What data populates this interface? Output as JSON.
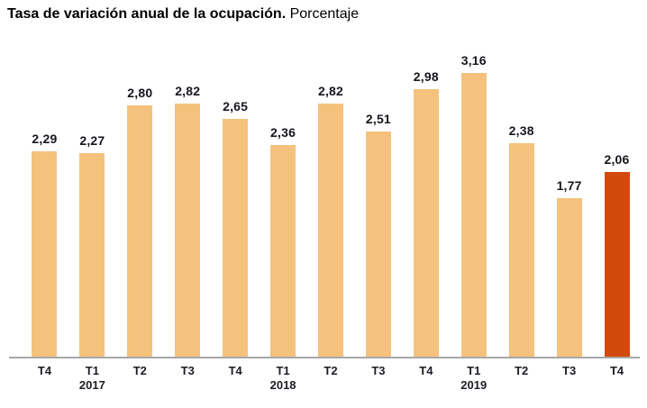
{
  "title": {
    "bold": "Tasa de variación anual de la ocupación.",
    "regular": "Porcentaje"
  },
  "colors": {
    "bar": "#f5c27d",
    "highlight": "#d2490e",
    "axis": "#a8a8a8",
    "label": "#16161d"
  },
  "chart_data": {
    "type": "bar",
    "title": "Tasa de variación anual de la ocupación. Porcentaje",
    "xlabel": "",
    "ylabel": "",
    "ylim": [
      0,
      3.5
    ],
    "grid": false,
    "y_axis_visible": false,
    "legend": "none",
    "categories": [
      "T4",
      "T1",
      "T2",
      "T3",
      "T4",
      "T1",
      "T2",
      "T3",
      "T4",
      "T1",
      "T2",
      "T3",
      "T4"
    ],
    "year_labels": [
      "",
      "2017",
      "",
      "",
      "",
      "2018",
      "",
      "",
      "",
      "2019",
      "",
      "",
      ""
    ],
    "values": [
      2.29,
      2.27,
      2.8,
      2.82,
      2.65,
      2.36,
      2.82,
      2.51,
      2.98,
      3.16,
      2.38,
      1.77,
      2.06
    ],
    "value_labels": [
      "2,29",
      "2,27",
      "2,80",
      "2,82",
      "2,65",
      "2,36",
      "2,82",
      "2,51",
      "2,98",
      "3,16",
      "2,38",
      "1,77",
      "2,06"
    ],
    "highlight_index": 12
  }
}
